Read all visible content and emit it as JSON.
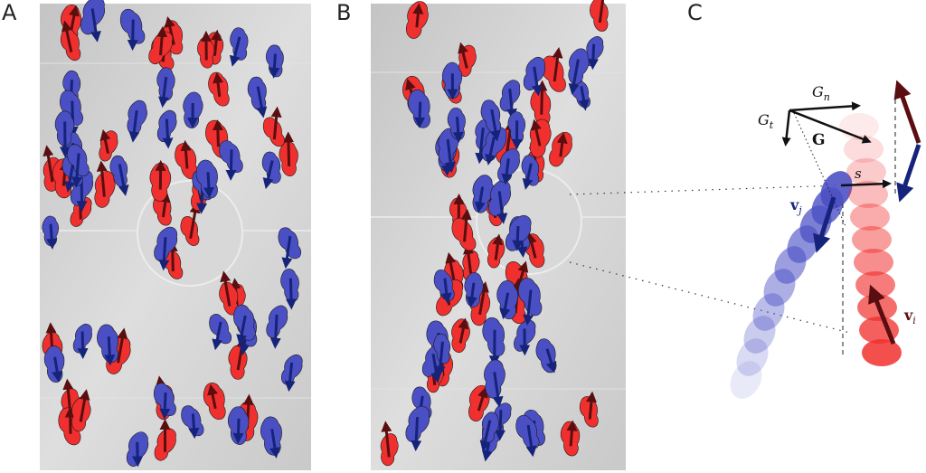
{
  "panels": [
    {
      "letter": "A"
    },
    {
      "letter": "B"
    },
    {
      "letter": "C"
    }
  ],
  "colors": {
    "red_agent": "#f0302e",
    "blue_agent": "#4a4fc4",
    "red_arrow": "#5a0e10",
    "blue_arrow": "#16237a",
    "floor": "#cfcfcf"
  },
  "schematic": {
    "labels": {
      "Gn": "Gn",
      "Gt": "Gt",
      "G": "G",
      "s": "s",
      "vj": "vj",
      "vi": "vi"
    }
  }
}
